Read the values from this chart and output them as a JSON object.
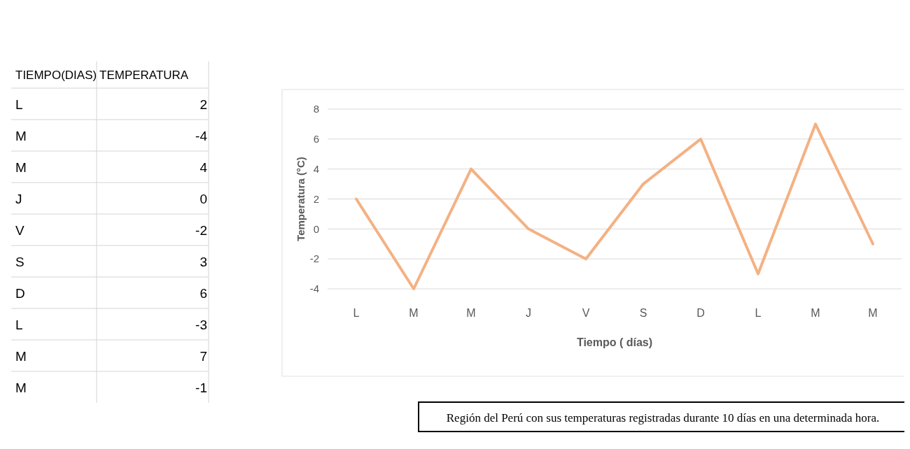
{
  "chart_data": [
    {
      "type": "other",
      "annotations": [
        "TIEMPO(DIAS)",
        "TEMPERATURA",
        "L",
        "2",
        "M",
        "-4",
        "M",
        "4",
        "J",
        "0",
        "V",
        "-2",
        "S",
        "3",
        "D",
        "6",
        "L",
        "-3",
        "M",
        "7",
        "M",
        "-1"
      ]
    },
    {
      "type": "line",
      "xlabel": "Tiempo ( días)",
      "ylabel": "Temperatura (°C)",
      "categories": [
        "L",
        "M",
        "M",
        "J",
        "V",
        "S",
        "D",
        "L",
        "M",
        "M"
      ],
      "series": [
        {
          "color": "#f4b183",
          "values": [
            2,
            -4,
            4,
            0,
            -2,
            3,
            6,
            -3,
            7,
            -1
          ]
        }
      ],
      "ylim": [
        -4,
        8
      ],
      "yticks": [
        -4,
        -2,
        0,
        2,
        4,
        6,
        8
      ],
      "grid": "y",
      "marker": "none",
      "line_style": "solid",
      "annotations": [
        "Región del Perú con sus temperaturas registradas durante 10 días en una determinada hora."
      ]
    }
  ]
}
